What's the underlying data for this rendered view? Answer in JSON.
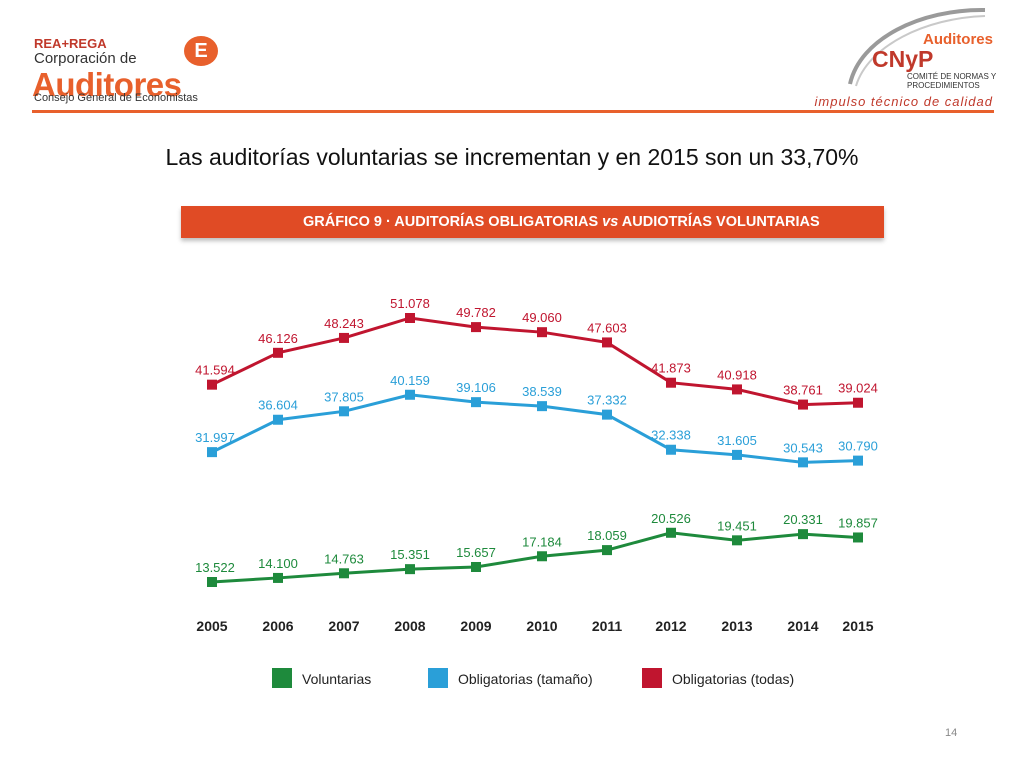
{
  "header": {
    "left_logo": {
      "line1": "REA+REGA",
      "line2": "Corporación de",
      "line3": "Auditores",
      "line4": "Consejo General de Economistas",
      "badge": "E"
    },
    "right_logo": {
      "line1": "Auditores",
      "line2": "CNyP",
      "line3": "COMITÉ DE NORMAS Y PROCEDIMIENTOS",
      "line4": "impulso técnico de calidad"
    }
  },
  "slide": {
    "title": "Las auditorías voluntarias se incrementan y en 2015 son un 33,70%",
    "page_number": "14"
  },
  "colors": {
    "accent": "#e8602c",
    "banner": "#e04b25",
    "voluntarias": "#1e8a3c",
    "obligatorias_tamano": "#2a9fd8",
    "obligatorias_todas": "#c0152f"
  },
  "chart_data": {
    "type": "line",
    "title_prefix": "GRÁFICO 9 · AUDITORÍAS OBLIGATORIAS",
    "title_vs": "vs",
    "title_suffix": "AUDIOTRÍAS VOLUNTARIAS",
    "categories": [
      "2005",
      "2006",
      "2007",
      "2008",
      "2009",
      "2010",
      "2011",
      "2012",
      "2013",
      "2014",
      "2015"
    ],
    "series": [
      {
        "name": "Obligatorias (todas)",
        "color": "#c0152f",
        "values": [
          41594,
          46126,
          48243,
          51078,
          49782,
          49060,
          47603,
          41873,
          40918,
          38761,
          39024
        ],
        "labels": [
          "41.594",
          "46.126",
          "48.243",
          "51.078",
          "49.782",
          "49.060",
          "47.603",
          "41.873",
          "40.918",
          "38.761",
          "39.024"
        ]
      },
      {
        "name": "Obligatorias (tamaño)",
        "color": "#2a9fd8",
        "values": [
          31997,
          36604,
          37805,
          40159,
          39106,
          38539,
          37332,
          32338,
          31605,
          30543,
          30790
        ],
        "labels": [
          "31.997",
          "36.604",
          "37.805",
          "40.159",
          "39.106",
          "38.539",
          "37.332",
          "32.338",
          "31.605",
          "30.543",
          "30.790"
        ]
      },
      {
        "name": "Voluntarias",
        "color": "#1e8a3c",
        "values": [
          13522,
          14100,
          14763,
          15351,
          15657,
          17184,
          18059,
          20526,
          19451,
          20331,
          19857
        ],
        "labels": [
          "13.522",
          "14.100",
          "14.763",
          "15.351",
          "15.657",
          "17.184",
          "18.059",
          "20.526",
          "19.451",
          "20.331",
          "19.857"
        ]
      }
    ],
    "legend": [
      "Voluntarias",
      "Obligatorias (tamaño)",
      "Obligatorias (todas)"
    ],
    "ylim": [
      10000,
      53000
    ],
    "grid": false,
    "legend_position": "bottom"
  }
}
